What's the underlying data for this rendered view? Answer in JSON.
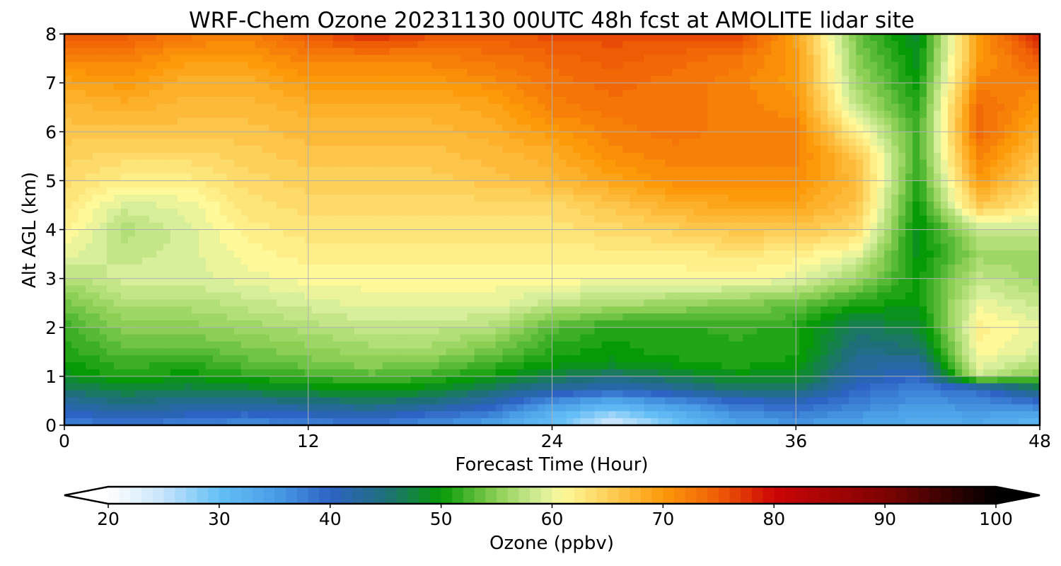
{
  "chart_data": {
    "type": "heatmap",
    "title": "WRF-Chem Ozone  20231130 00UTC 48h fcst at AMOLITE lidar site",
    "xlabel": "Forecast Time (Hour)",
    "ylabel": "Alt AGL (km)",
    "xlim": [
      0,
      48
    ],
    "ylim": [
      0,
      8
    ],
    "x_ticks": [
      "0",
      "12",
      "24",
      "36",
      "48"
    ],
    "y_ticks": [
      "0",
      "1",
      "2",
      "3",
      "4",
      "5",
      "6",
      "7",
      "8"
    ],
    "grid": true,
    "x_hours": [
      0,
      3,
      6,
      9,
      12,
      15,
      18,
      21,
      24,
      27,
      30,
      33,
      36,
      39,
      42,
      45,
      48
    ],
    "altitudes_km": [
      0,
      0.25,
      0.5,
      0.75,
      1,
      1.25,
      1.5,
      2,
      2.5,
      3,
      3.5,
      4,
      4.5,
      5,
      5.5,
      6,
      6.5,
      7,
      7.5,
      8
    ],
    "ozone_ppbv": [
      [
        37,
        38,
        37,
        36,
        37,
        38,
        36,
        34,
        30,
        23,
        29,
        34,
        35,
        34,
        33,
        33,
        31
      ],
      [
        40,
        42,
        41,
        40,
        41,
        42,
        40,
        38,
        32,
        28,
        32,
        36,
        38,
        36,
        34,
        35,
        34
      ],
      [
        43,
        45,
        44,
        44,
        45,
        46,
        45,
        42,
        37,
        34,
        37,
        40,
        41,
        38,
        36,
        37,
        40
      ],
      [
        46,
        48,
        47,
        48,
        49,
        50,
        49,
        46,
        43,
        41,
        43,
        46,
        46,
        40,
        37,
        40,
        46
      ],
      [
        49,
        51,
        50,
        51,
        52,
        53,
        52,
        50,
        47,
        45,
        47,
        49,
        49,
        42,
        40,
        58,
        54
      ],
      [
        50,
        52,
        51,
        53,
        54,
        55,
        54,
        52,
        50,
        49,
        50,
        51,
        50,
        43,
        42,
        60,
        57
      ],
      [
        51,
        53,
        53,
        54,
        55,
        56,
        56,
        54,
        51,
        50,
        51,
        51,
        51,
        44,
        45,
        61,
        59
      ],
      [
        52,
        55,
        55,
        56,
        57,
        58,
        58,
        57,
        53,
        51,
        51,
        52,
        51,
        46,
        48,
        62,
        60
      ],
      [
        54,
        57,
        57,
        58,
        59,
        60,
        60,
        60,
        58,
        57,
        56,
        55,
        54,
        51,
        50,
        60,
        58
      ],
      [
        57,
        59,
        59,
        60,
        61,
        61,
        61,
        61,
        61,
        61,
        61,
        61,
        60,
        56,
        50,
        58,
        56
      ],
      [
        60,
        58,
        59,
        61,
        62,
        62,
        62,
        62,
        62,
        62,
        62,
        63,
        62,
        60,
        49,
        56,
        56
      ],
      [
        62,
        57,
        59,
        62,
        63,
        63,
        63,
        63,
        63,
        64,
        65,
        66,
        66,
        64,
        49,
        58,
        58
      ],
      [
        63,
        59,
        60,
        63,
        64,
        64,
        64,
        64,
        64,
        66,
        68,
        69,
        69,
        66,
        50,
        66,
        62
      ],
      [
        64,
        62,
        62,
        64,
        65,
        65,
        65,
        66,
        67,
        69,
        71,
        71,
        71,
        67,
        51,
        70,
        64
      ],
      [
        65,
        64,
        64,
        65,
        66,
        66,
        66,
        67,
        68,
        71,
        72,
        72,
        72,
        66,
        52,
        72,
        66
      ],
      [
        66,
        66,
        66,
        66,
        67,
        67,
        67,
        68,
        70,
        72,
        73,
        72,
        72,
        62,
        52,
        74,
        68
      ],
      [
        67,
        68,
        67,
        67,
        68,
        68,
        68,
        69,
        72,
        73,
        73,
        72,
        71,
        58,
        51,
        74,
        70
      ],
      [
        69,
        70,
        68,
        68,
        70,
        70,
        70,
        71,
        73,
        74,
        73,
        72,
        70,
        56,
        50,
        72,
        72
      ],
      [
        72,
        72,
        70,
        70,
        72,
        72,
        72,
        73,
        74,
        75,
        74,
        73,
        70,
        55,
        49,
        70,
        75
      ],
      [
        76,
        75,
        73,
        72,
        75,
        78,
        76,
        75,
        76,
        76,
        76,
        77,
        69,
        54,
        48,
        70,
        79
      ]
    ],
    "colorbar": {
      "label": "Ozone  (ppbv)",
      "min": 20,
      "max": 100,
      "ticks": [
        "20",
        "30",
        "40",
        "50",
        "60",
        "70",
        "80",
        "90",
        "100"
      ],
      "extend": "both",
      "stops": [
        [
          20,
          "#ffffff"
        ],
        [
          25,
          "#c6e4fb"
        ],
        [
          30,
          "#64bff6"
        ],
        [
          35,
          "#4a9ee6"
        ],
        [
          40,
          "#2d63c4"
        ],
        [
          45,
          "#1f6f7a"
        ],
        [
          50,
          "#069a06"
        ],
        [
          55,
          "#8ccf55"
        ],
        [
          59,
          "#d7ee9a"
        ],
        [
          61,
          "#fff99a"
        ],
        [
          65,
          "#fdd05a"
        ],
        [
          70,
          "#fd9a0a"
        ],
        [
          75,
          "#ef5c06"
        ],
        [
          80,
          "#cd0505"
        ],
        [
          90,
          "#7e0303"
        ],
        [
          100,
          "#000000"
        ]
      ]
    }
  }
}
